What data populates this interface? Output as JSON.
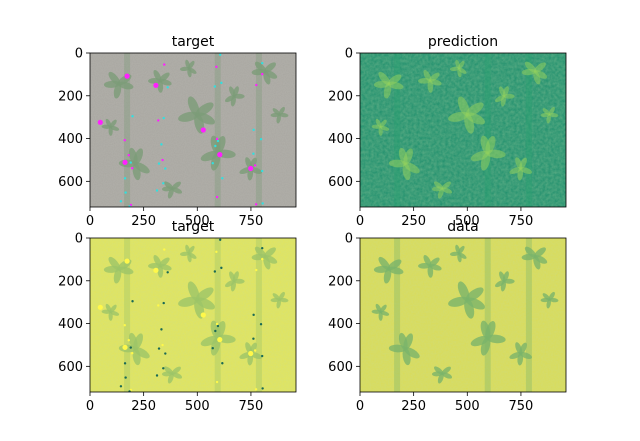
{
  "chart_data": [
    {
      "type": "image",
      "title": "target",
      "rendering": "rgb-photo-with-annotations",
      "xlim": [
        0,
        960
      ],
      "ylim": [
        720,
        0
      ],
      "xticks": [
        0,
        250,
        500,
        750
      ],
      "yticks": [
        0,
        200,
        400,
        600
      ],
      "tick_labels_x": [
        "0",
        "250",
        "500",
        "750"
      ],
      "tick_labels_y": [
        "0",
        "200",
        "400",
        "600"
      ],
      "colors": {
        "soil": "#a8a6a0",
        "plant": "#7c9c78",
        "marker_major": "#ff20ff",
        "marker_minor": "#30e0e0"
      }
    },
    {
      "type": "image",
      "title": "prediction",
      "rendering": "viridis-heatmap",
      "xlim": [
        0,
        960
      ],
      "ylim": [
        720,
        0
      ],
      "xticks": [
        0,
        250,
        500,
        750
      ],
      "yticks": [
        0,
        200,
        400,
        600
      ],
      "tick_labels_x": [
        "0",
        "250",
        "500",
        "750"
      ],
      "tick_labels_y": [
        "0",
        "200",
        "400",
        "600"
      ],
      "colors": {
        "background": "#1f8f6d",
        "highlight": "#8fcf5e"
      }
    },
    {
      "type": "image",
      "title": "target",
      "rendering": "viridis-heatmap-with-markers",
      "xlim": [
        0,
        960
      ],
      "ylim": [
        720,
        0
      ],
      "xticks": [
        0,
        250,
        500,
        750
      ],
      "yticks": [
        0,
        200,
        400,
        600
      ],
      "tick_labels_x": [
        "0",
        "250",
        "500",
        "750"
      ],
      "tick_labels_y": [
        "0",
        "200",
        "400",
        "600"
      ],
      "colors": {
        "background": "#e2e45c",
        "plant": "#9cc468",
        "marker_major": "#fff84a",
        "marker_minor": "#1a6a55"
      }
    },
    {
      "type": "image",
      "title": "data",
      "rendering": "viridis-heatmap",
      "xlim": [
        0,
        960
      ],
      "ylim": [
        720,
        0
      ],
      "xticks": [
        0,
        250,
        500,
        750
      ],
      "yticks": [
        0,
        200,
        400,
        600
      ],
      "tick_labels_x": [
        "0",
        "250",
        "500",
        "750"
      ],
      "tick_labels_y": [
        "0",
        "200",
        "400",
        "600"
      ],
      "colors": {
        "background": "#dadb58",
        "plant": "#7ab46a"
      }
    }
  ]
}
